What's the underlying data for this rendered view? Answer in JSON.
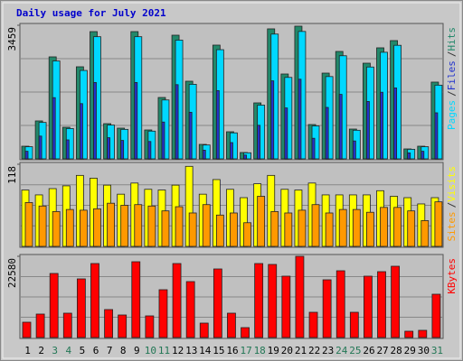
{
  "chart_data": [
    {
      "type": "bar",
      "title": "Daily usage for July 2021",
      "title_color": "#0000cc",
      "legend_separator": "/",
      "ylim": [
        0,
        3459
      ],
      "yticks": [
        3459
      ],
      "series": [
        {
          "name": "Pages",
          "color": "#00d8ff",
          "values": [
            314,
            943,
            2535,
            785,
            2289,
            3163,
            875,
            763,
            3163,
            718,
            1525,
            3074,
            1930,
            359,
            2827,
            673,
            157,
            1391,
            3231,
            2109,
            3299,
            852,
            2131,
            2670,
            740,
            2378,
            2760,
            2940,
            247,
            314,
            1908
          ]
        },
        {
          "name": "Files",
          "color": "#2233cc",
          "values": [
            196,
            589,
            1585,
            491,
            1430,
            1977,
            547,
            477,
            1977,
            449,
            953,
            1921,
            1206,
            224,
            1767,
            421,
            98,
            869,
            2020,
            1318,
            2062,
            533,
            1332,
            1669,
            463,
            1486,
            1725,
            1837,
            154,
            196,
            1192
          ]
        },
        {
          "name": "Hits",
          "color": "#22886a",
          "values": [
            327,
            982,
            2641,
            818,
            2384,
            3295,
            911,
            795,
            3295,
            748,
            1589,
            3202,
            2010,
            374,
            2945,
            701,
            164,
            1449,
            3366,
            2197,
            3436,
            888,
            2220,
            2781,
            771,
            2477,
            2875,
            3062,
            257,
            327,
            1987
          ]
        }
      ]
    },
    {
      "type": "bar",
      "ylim": [
        0,
        118
      ],
      "yticks": [
        118
      ],
      "series": [
        {
          "name": "Sites",
          "color": "#ff9900",
          "values": [
            63,
            58,
            50,
            53,
            52,
            54,
            62,
            59,
            60,
            58,
            51,
            57,
            48,
            60,
            45,
            48,
            34,
            72,
            50,
            48,
            52,
            60,
            48,
            53,
            53,
            49,
            56,
            56,
            51,
            37,
            64
          ]
        },
        {
          "name": "Visits",
          "color": "#ffff00",
          "values": [
            81,
            74,
            83,
            87,
            102,
            98,
            88,
            75,
            91,
            82,
            81,
            88,
            115,
            75,
            96,
            82,
            70,
            90,
            102,
            82,
            81,
            91,
            74,
            74,
            74,
            74,
            80,
            72,
            70,
            61,
            70
          ]
        }
      ]
    },
    {
      "type": "bar",
      "ylim": [
        0,
        22580
      ],
      "yticks": [
        22580
      ],
      "categories": [
        "1",
        "2",
        "3",
        "4",
        "5",
        "6",
        "7",
        "8",
        "9",
        "10",
        "11",
        "12",
        "13",
        "14",
        "15",
        "16",
        "17",
        "18",
        "19",
        "20",
        "21",
        "22",
        "23",
        "24",
        "25",
        "26",
        "27",
        "28",
        "29",
        "30",
        "31"
      ],
      "category_colors": [
        "#000000",
        "#000000",
        "#227755",
        "#227755",
        "#000000",
        "#000000",
        "#000000",
        "#000000",
        "#000000",
        "#227755",
        "#227755",
        "#000000",
        "#000000",
        "#000000",
        "#000000",
        "#000000",
        "#227755",
        "#227755",
        "#000000",
        "#000000",
        "#000000",
        "#000000",
        "#000000",
        "#227755",
        "#227755",
        "#000000",
        "#000000",
        "#000000",
        "#000000",
        "#000000",
        "#227755"
      ],
      "series": [
        {
          "name": "KBytes",
          "color": "#ff0000",
          "values": [
            4265,
            6523,
            17814,
            6774,
            16308,
            20573,
            7778,
            6272,
            21075,
            6021,
            13297,
            20573,
            15555,
            4014,
            19068,
            6774,
            2760,
            20573,
            20322,
            17061,
            22580,
            7025,
            16057,
            18566,
            7025,
            17061,
            18315,
            19820,
            1756,
            2007,
            12043
          ]
        }
      ]
    }
  ]
}
